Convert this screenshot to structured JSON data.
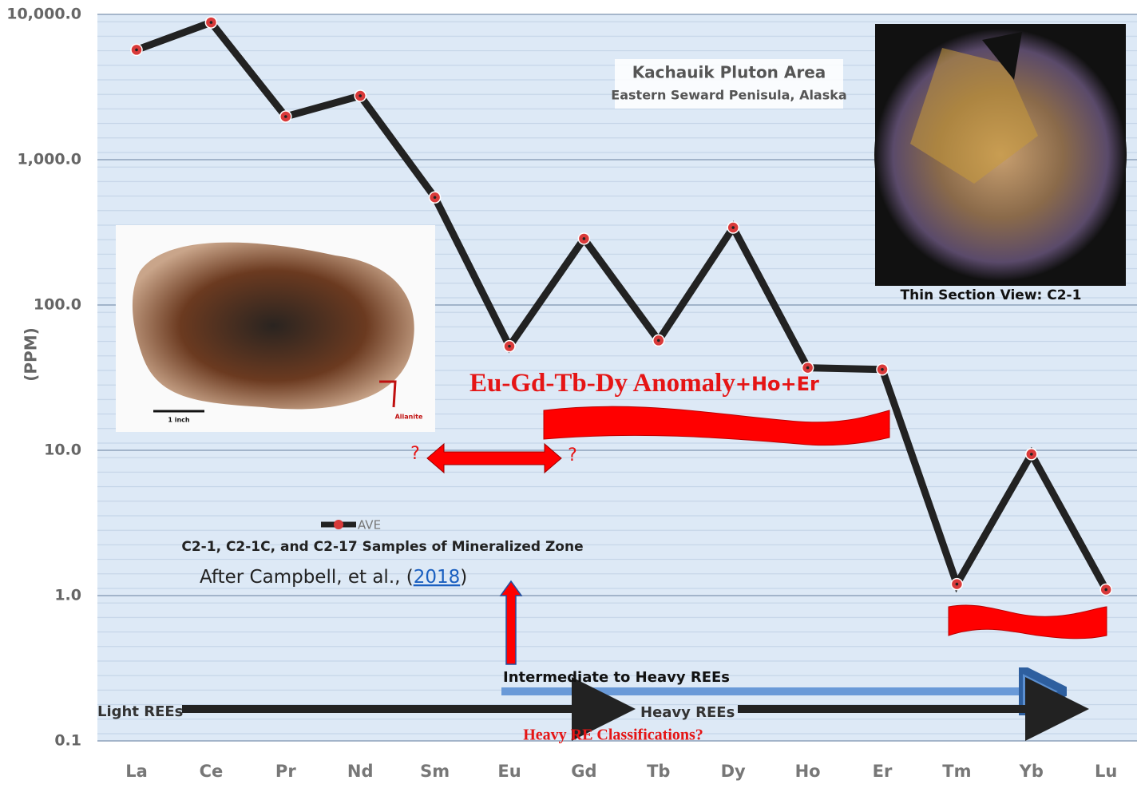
{
  "chart_data": {
    "type": "line",
    "y_axis_label": "(PPM)",
    "log_scale": true,
    "grid": true,
    "categories": [
      "La",
      "Ce",
      "Pr",
      "Nd",
      "Sm",
      "Eu",
      "Gd",
      "Tb",
      "Dy",
      "Ho",
      "Er",
      "Tm",
      "Yb",
      "Lu"
    ],
    "series": [
      {
        "name": "AVE",
        "color": "#222222",
        "marker_color": "#d93a3a",
        "values": [
          5700,
          8800,
          1980,
          2750,
          550,
          52,
          286,
          57,
          341,
          37,
          36,
          1.2,
          9.4,
          1.1
        ]
      }
    ],
    "ylim": [
      0.1,
      10000
    ],
    "yticks": [
      {
        "value": 0.1,
        "label": "0.1"
      },
      {
        "value": 1,
        "label": "1.0"
      },
      {
        "value": 10,
        "label": "10.0"
      },
      {
        "value": 100,
        "label": "100.0"
      },
      {
        "value": 1000,
        "label": "1,000.0"
      },
      {
        "value": 10000,
        "label": "10,000.0"
      }
    ],
    "annotations": {
      "area_title": "Kachauik Pluton Area",
      "area_subtitle": "Eastern Seward Penisula, Alaska",
      "thin_section": "Thin Section View: C2-1",
      "anomaly": "Eu-Gd-Tb-Dy Anomaly",
      "anomaly_extra": "+Ho+Er",
      "samples": "C2-1, C2-1C, and C2-17 Samples of Mineralized Zone",
      "citation_pre": "After Campbell, et al., (",
      "citation_year": "2018",
      "citation_post": ")",
      "question_left": "?",
      "question_right": "?",
      "intermediate": "Intermediate to Heavy REEs",
      "light": "Light REEs",
      "heavy": "Heavy REEs",
      "classification": "Heavy RE Classifications?",
      "scale": "1 inch",
      "allanite": "Allanite"
    }
  }
}
